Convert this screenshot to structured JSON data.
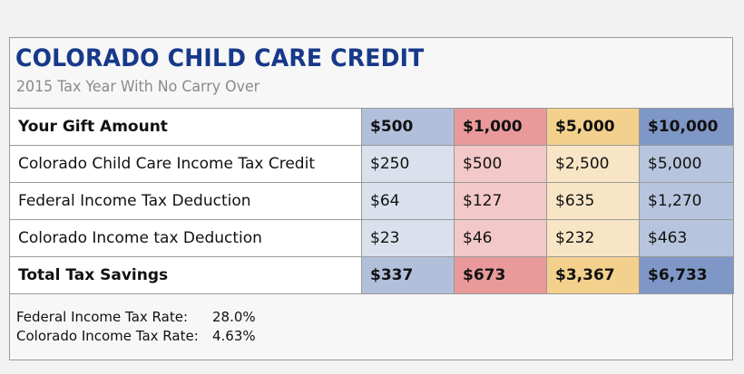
{
  "title": "COLORADO CHILD CARE CREDIT",
  "subtitle": "2015 Tax Year With No Carry Over",
  "colors": {
    "title": "#17398a",
    "col1_header": "#b1bfdb",
    "col1_body": "#dbe1ec",
    "col2_header": "#e9999a",
    "col2_body": "#f3c8c8",
    "col3_header": "#f3d08c",
    "col3_body": "#f7e5c6",
    "col4_header": "#7f97c6",
    "col4_body": "#b6c5dd"
  },
  "table": {
    "header": {
      "label": "Your Gift Amount",
      "values": [
        "$500",
        "$1,000",
        "$5,000",
        "$10,000"
      ]
    },
    "rows": [
      {
        "label": "Colorado Child Care Income Tax Credit",
        "values": [
          "$250",
          "$500",
          "$2,500",
          "$5,000"
        ]
      },
      {
        "label": "Federal Income Tax Deduction",
        "values": [
          "$64",
          "$127",
          "$635",
          "$1,270"
        ]
      },
      {
        "label": "Colorado Income tax Deduction",
        "values": [
          "$23",
          "$46",
          "$232",
          "$463"
        ]
      }
    ],
    "total": {
      "label": "Total Tax Savings",
      "values": [
        "$337",
        "$673",
        "$3,367",
        "$6,733"
      ]
    }
  },
  "footer": {
    "federal_label": "Federal Income Tax Rate:",
    "federal_value": "28.0%",
    "colorado_label": "Colorado Income Tax Rate:",
    "colorado_value": "4.63%"
  }
}
